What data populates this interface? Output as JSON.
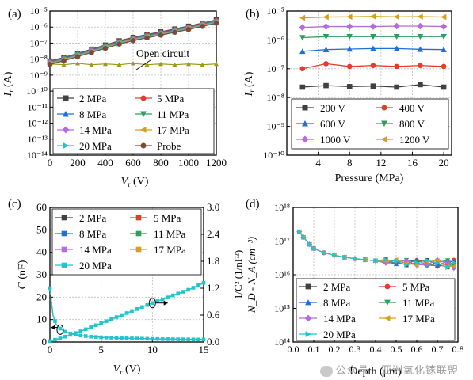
{
  "colors": {
    "2 MPa": "#404040",
    "5 MPa": "#e8392f",
    "8 MPa": "#1f6fd6",
    "11 MPa": "#2ca05a",
    "14 MPa": "#b36ae2",
    "17 MPa": "#d4a017",
    "20 MPa": "#1cc7d0",
    "Probe": "#7b4a3a",
    "200 V": "#404040",
    "400 V": "#e8392f",
    "600 V": "#1f6fd6",
    "800 V": "#2ca05a",
    "1000 V": "#b36ae2",
    "1200 V": "#d4a017",
    "open": "#9a9a1a"
  },
  "watermark": "公众号 · 亚洲氧化镓联盟",
  "chart_data": [
    {
      "panel": "(a)",
      "type": "line",
      "xlabel_main": "V",
      "xlabel_sub": "r",
      "xlabel_unit": " (V)",
      "ylabel_main": "I",
      "ylabel_sub": "r",
      "ylabel_unit": " (A)",
      "xlim": [
        0,
        1200
      ],
      "ylim": [
        1e-14,
        1e-05
      ],
      "yscale": "log",
      "xticks": [
        "0",
        "200",
        "400",
        "600",
        "800",
        "1000",
        "1200"
      ],
      "yticks": [
        "10⁻¹⁴",
        "10⁻¹³",
        "10⁻¹²",
        "10⁻¹¹",
        "10⁻¹⁰",
        "10⁻⁹",
        "10⁻⁸",
        "10⁻⁷",
        "10⁻⁶",
        "10⁻⁵"
      ],
      "annotation": "Open circuit",
      "legend": [
        "2 MPa",
        "5 MPa",
        "8 MPa",
        "11 MPa",
        "14 MPa",
        "17 MPa",
        "20 MPa",
        "Probe"
      ],
      "series_x": [
        0,
        100,
        200,
        300,
        400,
        500,
        600,
        700,
        800,
        900,
        1000,
        1100,
        1200
      ],
      "series_y": [
        6e-09,
        1e-08,
        1.8e-08,
        3.3e-08,
        6e-08,
        1.1e-07,
        1.8e-07,
        2.7e-07,
        4e-07,
        6e-07,
        9e-07,
        1.4e-06,
        2.2e-06
      ],
      "open_circuit_x": [
        0,
        100,
        200,
        300,
        400,
        500,
        600,
        700,
        800,
        900,
        1000,
        1100,
        1200
      ],
      "open_circuit_y": [
        5e-09,
        4.5e-09,
        5.5e-09,
        4.5e-09,
        5e-09,
        4.5e-09,
        5.5e-09,
        4.5e-09,
        5e-09,
        4.5e-09,
        5e-09,
        4.5e-09,
        5e-09
      ]
    },
    {
      "panel": "(b)",
      "type": "line",
      "xlabel": "Pressure (MPa)",
      "ylabel_main": "I",
      "ylabel_sub": "r",
      "ylabel_unit": " (A)",
      "xlim": [
        0,
        21
      ],
      "ylim": [
        1e-10,
        1e-05
      ],
      "yscale": "log",
      "xticks": [
        "4",
        "8",
        "12",
        "16",
        "20"
      ],
      "yticks": [
        "10⁻¹⁰",
        "10⁻⁹",
        "10⁻⁸",
        "10⁻⁷",
        "10⁻⁶",
        "10⁻⁵"
      ],
      "x": [
        2,
        5,
        8,
        11,
        14,
        17,
        20
      ],
      "series": [
        {
          "name": "200 V",
          "values": [
            2.3e-08,
            2.6e-08,
            2.4e-08,
            2.5e-08,
            2.3e-08,
            2.8e-08,
            2.3e-08
          ]
        },
        {
          "name": "400 V",
          "values": [
            1e-07,
            1.5e-07,
            1.2e-07,
            1.3e-07,
            1.2e-07,
            1.3e-07,
            1.2e-07
          ]
        },
        {
          "name": "600 V",
          "values": [
            4e-07,
            4.6e-07,
            4.8e-07,
            5e-07,
            5e-07,
            4.7e-07,
            4.6e-07
          ]
        },
        {
          "name": "800 V",
          "values": [
            1.2e-06,
            1.3e-06,
            1.3e-06,
            1.3e-06,
            1.3e-06,
            1.3e-06,
            1.3e-06
          ]
        },
        {
          "name": "1000 V",
          "values": [
            2.7e-06,
            2.9e-06,
            2.9e-06,
            2.9e-06,
            3e-06,
            3e-06,
            2.9e-06
          ]
        },
        {
          "name": "1200 V",
          "values": [
            5.8e-06,
            6.2e-06,
            6.3e-06,
            6.5e-06,
            6.3e-06,
            6.4e-06,
            6.2e-06
          ]
        }
      ]
    },
    {
      "panel": "(c)",
      "type": "line",
      "xlabel_main": "V",
      "xlabel_sub": "r",
      "xlabel_unit": " (V)",
      "ylabel_main": "C",
      "ylabel_unit": " (nF)",
      "ylabel2": "1/C² (1/nF²)",
      "xlim": [
        0,
        15
      ],
      "ylim": [
        0,
        60
      ],
      "ylim2": [
        0,
        3.0
      ],
      "xticks": [
        "0",
        "5",
        "10",
        "15"
      ],
      "yticks": [
        "0",
        "10",
        "20",
        "30",
        "40",
        "50",
        "60"
      ],
      "yticks2": [
        "0.0",
        "0.6",
        "1.2",
        "1.8",
        "2.4",
        "3.0"
      ],
      "legend": [
        "2 MPa",
        "5 MPa",
        "8 MPa",
        "11 MPa",
        "14 MPa",
        "17 MPa",
        "20 MPa"
      ],
      "c_x": [
        0,
        0.3,
        0.6,
        1,
        1.5,
        2,
        2.5,
        3,
        4,
        5,
        6,
        7,
        8,
        9,
        10,
        11,
        12,
        13,
        14,
        15
      ],
      "c_y": [
        24,
        12,
        8,
        6,
        4.6,
        3.8,
        3.3,
        2.9,
        2.4,
        2.1,
        1.9,
        1.7,
        1.6,
        1.5,
        1.4,
        1.3,
        1.25,
        1.2,
        1.15,
        1.1
      ],
      "inv_x": [
        0,
        1,
        2,
        3,
        4,
        5,
        6,
        7,
        8,
        9,
        10,
        11,
        12,
        13,
        14,
        15
      ],
      "inv_y": [
        0.02,
        0.08,
        0.16,
        0.24,
        0.33,
        0.42,
        0.51,
        0.6,
        0.69,
        0.78,
        0.87,
        0.95,
        1.04,
        1.12,
        1.21,
        1.32
      ]
    },
    {
      "panel": "(d)",
      "type": "line",
      "xlabel": "Depth (μm)",
      "ylabel": "N_D - N_A (cm⁻³)",
      "xlim": [
        0,
        0.8
      ],
      "ylim": [
        100000000000000.0,
        1e+18
      ],
      "yscale": "log",
      "xticks": [
        "0.0",
        "0.1",
        "0.2",
        "0.3",
        "0.4",
        "0.5",
        "0.6",
        "0.7",
        "0.8"
      ],
      "yticks": [
        "10¹⁴",
        "10¹⁵",
        "10¹⁶",
        "10¹⁷",
        "10¹⁸"
      ],
      "legend": [
        "2 MPa",
        "5 MPa",
        "8 MPa",
        "11 MPa",
        "14 MPa",
        "17 MPa",
        "20 MPa"
      ],
      "x": [
        0.03,
        0.05,
        0.08,
        0.1,
        0.15,
        0.2,
        0.25,
        0.3,
        0.35,
        0.4,
        0.45,
        0.5,
        0.55,
        0.6,
        0.65,
        0.7,
        0.75,
        0.78
      ],
      "y": [
        1.9e+17,
        1.3e+17,
        8e+16,
        6e+16,
        4.5e+16,
        3.8e+16,
        3.3e+16,
        3e+16,
        2.8e+16,
        2.6e+16,
        2.5e+16,
        2.4e+16,
        2.3e+16,
        2.3e+16,
        2.2e+16,
        2.2e+16,
        2.1e+16,
        2.1e+16
      ]
    }
  ]
}
